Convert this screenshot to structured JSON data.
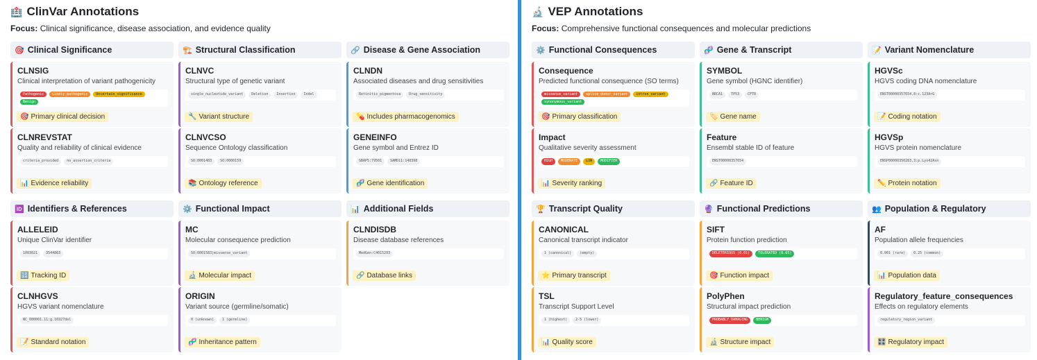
{
  "clinvar": {
    "title": "ClinVar Annotations",
    "icon": "🏥",
    "focus_label": "Focus:",
    "focus_text": "Clinical significance, disease association, and evidence quality",
    "sections": [
      {
        "icon": "🎯",
        "title": "Clinical Significance",
        "cards": [
          {
            "name": "CLNSIG",
            "desc": "Clinical interpretation of variant pathogenicity",
            "tags": [
              {
                "t": "Pathogenic",
                "c": "red"
              },
              {
                "t": "Likely_pathogenic",
                "c": "orange"
              },
              {
                "t": "Uncertain_significance",
                "c": "yellow"
              },
              {
                "t": "Benign",
                "c": "green"
              }
            ],
            "note": "Primary clinical decision",
            "note_icon": "🎯",
            "border": "red"
          },
          {
            "name": "CLNREVSTAT",
            "desc": "Quality and reliability of clinical evidence",
            "tags": [
              {
                "t": "criteria_provided",
                "c": ""
              },
              {
                "t": "no_assertion_criteria",
                "c": ""
              }
            ],
            "note": "Evidence reliability",
            "note_icon": "📊",
            "border": "red"
          }
        ]
      },
      {
        "icon": "🏗️",
        "title": "Structural Classification",
        "cards": [
          {
            "name": "CLNVC",
            "desc": "Structural type of genetic variant",
            "tags": [
              {
                "t": "single_nucleotide_variant",
                "c": ""
              },
              {
                "t": "Deletion",
                "c": ""
              },
              {
                "t": "Insertion",
                "c": ""
              },
              {
                "t": "Indel",
                "c": ""
              }
            ],
            "note": "Variant structure",
            "note_icon": "🔧",
            "border": "purple"
          },
          {
            "name": "CLNVCSO",
            "desc": "Sequence Ontology classification",
            "tags": [
              {
                "t": "SO:0001483",
                "c": ""
              },
              {
                "t": "SO:0000159",
                "c": ""
              }
            ],
            "note": "Ontology reference",
            "note_icon": "📚",
            "border": "purple"
          }
        ]
      },
      {
        "icon": "🔗",
        "title": "Disease & Gene Association",
        "cards": [
          {
            "name": "CLNDN",
            "desc": "Associated diseases and drug sensitivities",
            "tags": [
              {
                "t": "Retinitis_pigmentosa",
                "c": ""
              },
              {
                "t": "Drug_sensitivity",
                "c": ""
              }
            ],
            "note": "Includes pharmacogenomics",
            "note_icon": "💊",
            "border": "blue"
          },
          {
            "name": "GENEINFO",
            "desc": "Gene symbol and Entrez ID",
            "tags": [
              {
                "t": "GBAP5:79501",
                "c": ""
              },
              {
                "t": "SAMD11:148398",
                "c": ""
              }
            ],
            "note": "Gene identification",
            "note_icon": "🧬",
            "border": "blue"
          }
        ]
      },
      {
        "icon": "🆔",
        "title": "Identifiers & References",
        "cards": [
          {
            "name": "ALLELEID",
            "desc": "Unique ClinVar identifier",
            "tags": [
              {
                "t": "1003021",
                "c": ""
              },
              {
                "t": "3544863",
                "c": ""
              }
            ],
            "note": "Tracking ID",
            "note_icon": "🔢",
            "border": "red"
          },
          {
            "name": "CLNHGVS",
            "desc": "HGVS variant nomenclature",
            "tags": [
              {
                "t": "NC_000001.11:g.16927del",
                "c": ""
              }
            ],
            "note": "Standard notation",
            "note_icon": "📝",
            "border": "red"
          }
        ]
      },
      {
        "icon": "⚙️",
        "title": "Functional Impact",
        "cards": [
          {
            "name": "MC",
            "desc": "Molecular consequence prediction",
            "tags": [
              {
                "t": "SO:0001583|missense_variant",
                "c": ""
              }
            ],
            "note": "Molecular impact",
            "note_icon": "🔬",
            "border": "purple"
          },
          {
            "name": "ORIGIN",
            "desc": "Variant source (germline/somatic)",
            "tags": [
              {
                "t": "0 (unknown)",
                "c": ""
              },
              {
                "t": "1 (germline)",
                "c": ""
              }
            ],
            "note": "Inheritance pattern",
            "note_icon": "🧬",
            "border": "purple"
          }
        ]
      },
      {
        "icon": "📊",
        "title": "Additional Fields",
        "cards": [
          {
            "name": "CLNDISDB",
            "desc": "Disease database references",
            "tags": [
              {
                "t": "MedGen:C4015293",
                "c": ""
              }
            ],
            "note": "Database links",
            "note_icon": "🔗",
            "border": "orange"
          }
        ]
      }
    ]
  },
  "vep": {
    "title": "VEP Annotations",
    "icon": "🔬",
    "focus_label": "Focus:",
    "focus_text": "Comprehensive functional consequences and molecular predictions",
    "sections": [
      {
        "icon": "⚙️",
        "title": "Functional Consequences",
        "cards": [
          {
            "name": "Consequence",
            "desc": "Predicted functional consequence (SO terms)",
            "tags": [
              {
                "t": "missense_variant",
                "c": "red"
              },
              {
                "t": "splice_donor_variant",
                "c": "orange"
              },
              {
                "t": "intron_variant",
                "c": "yellow"
              },
              {
                "t": "synonymous_variant",
                "c": "green"
              }
            ],
            "note": "Primary classification",
            "note_icon": "🎯",
            "border": "red"
          },
          {
            "name": "Impact",
            "desc": "Qualitative severity assessment",
            "tags": [
              {
                "t": "HIGH",
                "c": "red"
              },
              {
                "t": "MODERATE",
                "c": "orange"
              },
              {
                "t": "LOW",
                "c": "yellow"
              },
              {
                "t": "MODIFIER",
                "c": "green"
              }
            ],
            "note": "Severity ranking",
            "note_icon": "📊",
            "border": "red"
          }
        ]
      },
      {
        "icon": "🧬",
        "title": "Gene & Transcript",
        "cards": [
          {
            "name": "SYMBOL",
            "desc": "Gene symbol (HGNC identifier)",
            "tags": [
              {
                "t": "BRCA1",
                "c": ""
              },
              {
                "t": "TP53",
                "c": ""
              },
              {
                "t": "CFTR",
                "c": ""
              }
            ],
            "note": "Gene name",
            "note_icon": "🏷️",
            "border": "teal"
          },
          {
            "name": "Feature",
            "desc": "Ensembl stable ID of feature",
            "tags": [
              {
                "t": "ENST00000357654",
                "c": ""
              }
            ],
            "note": "Feature ID",
            "note_icon": "🔗",
            "border": "teal"
          }
        ]
      },
      {
        "icon": "📝",
        "title": "Variant Nomenclature",
        "cards": [
          {
            "name": "HGVSc",
            "desc": "HGVS coding DNA nomenclature",
            "tags": [
              {
                "t": "ENST00000357654.8:c.123A>G",
                "c": ""
              }
            ],
            "note": "Coding notation",
            "note_icon": "📝",
            "border": "teal"
          },
          {
            "name": "HGVSp",
            "desc": "HGVS protein nomenclature",
            "tags": [
              {
                "t": "ENSP00000350283.3:p.Lys42Asn",
                "c": ""
              }
            ],
            "note": "Protein notation",
            "note_icon": "✏️",
            "border": "teal"
          }
        ]
      },
      {
        "icon": "🏆",
        "title": "Transcript Quality",
        "cards": [
          {
            "name": "CANONICAL",
            "desc": "Canonical transcript indicator",
            "tags": [
              {
                "t": "1 (canonical)",
                "c": ""
              },
              {
                "t": "(empty)",
                "c": ""
              }
            ],
            "note": "Primary transcript",
            "note_icon": "⭐",
            "border": "orange"
          },
          {
            "name": "TSL",
            "desc": "Transcript Support Level",
            "tags": [
              {
                "t": "1 (highest)",
                "c": ""
              },
              {
                "t": "2-5 (lower)",
                "c": ""
              }
            ],
            "note": "Quality score",
            "note_icon": "📊",
            "border": "orange"
          }
        ]
      },
      {
        "icon": "🔮",
        "title": "Functional Predictions",
        "cards": [
          {
            "name": "SIFT",
            "desc": "Protein function prediction",
            "tags": [
              {
                "t": "DELETERIOUS (0.01)",
                "c": "red"
              },
              {
                "t": "TOLERATED (0.65)",
                "c": "green"
              }
            ],
            "note": "Function impact",
            "note_icon": "🎯",
            "border": "orange"
          },
          {
            "name": "PolyPhen",
            "desc": "Structural impact prediction",
            "tags": [
              {
                "t": "PROBABLY_DAMAGING",
                "c": "red"
              },
              {
                "t": "BENIGN",
                "c": "green"
              }
            ],
            "note": "Structure impact",
            "note_icon": "🔬",
            "border": "orange"
          }
        ]
      },
      {
        "icon": "👥",
        "title": "Population & Regulatory",
        "cards": [
          {
            "name": "AF",
            "desc": "Population allele frequencies",
            "tags": [
              {
                "t": "0.001 (rare)",
                "c": ""
              },
              {
                "t": "0.25 (common)",
                "c": ""
              }
            ],
            "note": "Population data",
            "note_icon": "📊",
            "border": "slate"
          },
          {
            "name": "Regulatory_feature_consequences",
            "desc": "Effects on regulatory elements",
            "tags": [
              {
                "t": "regulatory_region_variant",
                "c": ""
              }
            ],
            "note": "Regulatory impact",
            "note_icon": "🎛️",
            "border": "purple"
          }
        ]
      }
    ]
  }
}
